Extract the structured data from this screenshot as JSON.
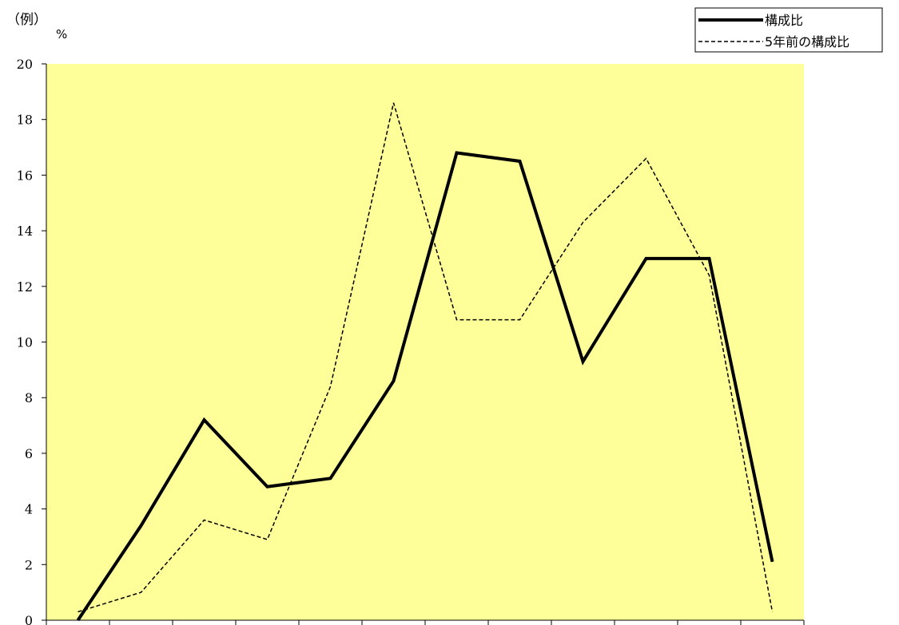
{
  "corner_label": "（例）",
  "unit_label": "%",
  "chart_data": {
    "type": "line",
    "title": "",
    "xlabel": "",
    "ylabel": "%",
    "ylim": [
      0,
      20
    ],
    "yticks": [
      "0",
      "2",
      "4",
      "6",
      "8",
      "10",
      "12",
      "14",
      "16",
      "18",
      "20"
    ],
    "grid": false,
    "legend_position": "top-right",
    "plot_background": "#FFFF99",
    "series": [
      {
        "name": "構成比",
        "style": "solid-thick",
        "color": "#000000",
        "values": [
          0,
          3.4,
          7.2,
          4.8,
          5.1,
          8.6,
          16.8,
          16.5,
          9.3,
          13.0,
          13.0,
          2.1
        ]
      },
      {
        "name": "5年前の構成比",
        "style": "dashed-thin",
        "color": "#000000",
        "values": [
          0.3,
          1.0,
          3.6,
          2.9,
          8.4,
          18.6,
          10.8,
          10.8,
          14.3,
          16.6,
          12.4,
          0.3
        ]
      }
    ]
  }
}
